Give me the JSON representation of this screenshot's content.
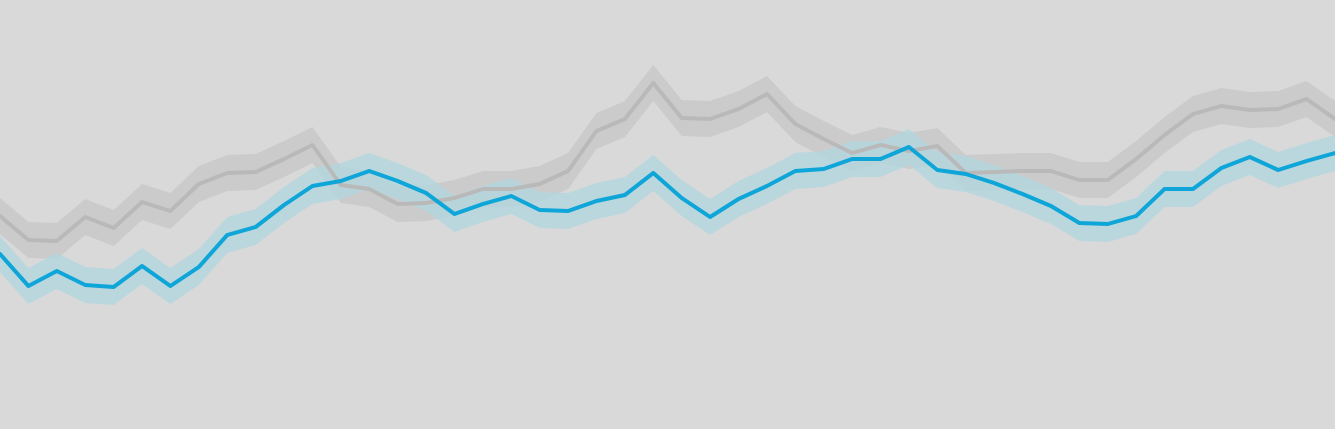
{
  "chart_data": {
    "type": "line",
    "title": "",
    "xlabel": "",
    "ylabel": "",
    "x": [
      1,
      2,
      3,
      4,
      5,
      6,
      7,
      8,
      9,
      10,
      11,
      12,
      13,
      14,
      15,
      16,
      17,
      18,
      19,
      20,
      21,
      22,
      23,
      24,
      25,
      26,
      27,
      28,
      29,
      30,
      31,
      32,
      33,
      34,
      35,
      36,
      37,
      38,
      39,
      40,
      41,
      42,
      43,
      44,
      45,
      46,
      47,
      48
    ],
    "xlim": [
      1,
      48
    ],
    "ylim": [
      0,
      429
    ],
    "grid": false,
    "legend": "none",
    "series": [
      {
        "color": "#b9b9b9",
        "band_color": "#c8c8c8",
        "values": [
          213,
          189,
          188,
          212,
          201,
          227,
          218,
          245,
          256,
          257,
          270,
          284,
          244,
          240,
          225,
          226,
          231,
          240,
          240,
          245,
          258,
          298,
          310,
          346,
          311,
          310,
          320,
          335,
          305,
          290,
          276,
          284,
          278,
          283,
          256,
          257,
          258,
          258,
          249,
          249,
          270,
          294,
          315,
          323,
          319,
          320,
          330,
          310
        ],
        "band_half_width": 18
      },
      {
        "color": "#0ea5d8",
        "band_color": "#b5d6de",
        "values": [
          175,
          143,
          158,
          144,
          142,
          163,
          143,
          162,
          194,
          202,
          224,
          243,
          248,
          258,
          248,
          236,
          215,
          225,
          233,
          219,
          218,
          228,
          234,
          256,
          231,
          212,
          230,
          243,
          258,
          260,
          270,
          270,
          282,
          259,
          255,
          246,
          235,
          223,
          206,
          205,
          213,
          240,
          240,
          261,
          272,
          259,
          268,
          276
        ],
        "band_half_width": 18
      }
    ]
  }
}
